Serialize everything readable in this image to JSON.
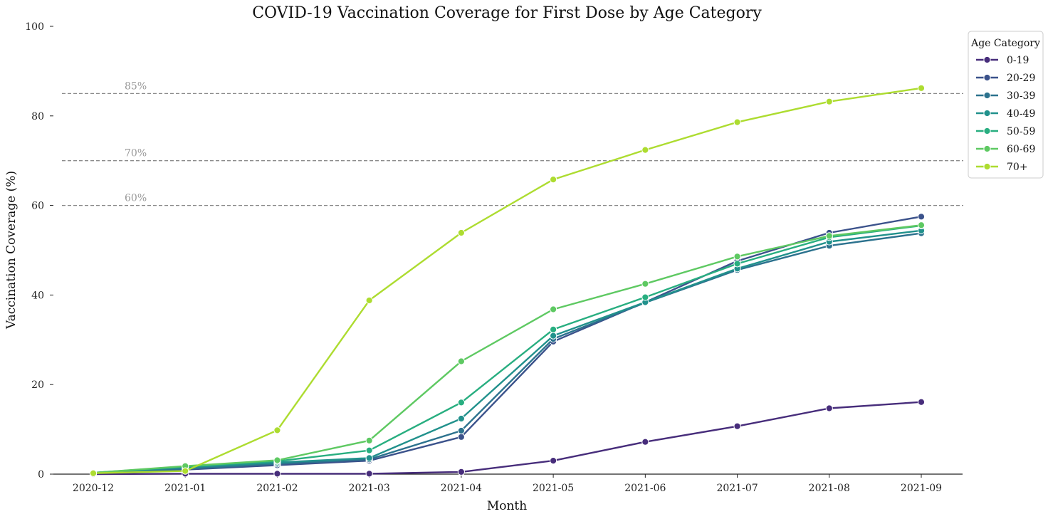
{
  "chart_data": {
    "type": "line",
    "title": "COVID-19 Vaccination Coverage for First Dose by Age Category",
    "xlabel": "Month",
    "ylabel": "Vaccination Coverage (%)",
    "ylim": [
      0,
      100
    ],
    "yticks": [
      0,
      20,
      40,
      60,
      80,
      100
    ],
    "categories": [
      "2020-12",
      "2021-01",
      "2021-02",
      "2021-03",
      "2021-04",
      "2021-05",
      "2021-06",
      "2021-07",
      "2021-08",
      "2021-09"
    ],
    "grid": false,
    "legend": {
      "title": "Age Category",
      "placement": "top-right"
    },
    "reference_lines": [
      {
        "value": 85,
        "label": "85%"
      },
      {
        "value": 70,
        "label": "70%"
      },
      {
        "value": 60,
        "label": "60%"
      }
    ],
    "series": [
      {
        "name": "0-19",
        "color": "#472d7b",
        "values": [
          0.0,
          0.1,
          0.1,
          0.1,
          0.5,
          3.0,
          7.2,
          10.7,
          14.7,
          16.1
        ]
      },
      {
        "name": "20-29",
        "color": "#3b528b",
        "values": [
          0.2,
          1.0,
          2.0,
          3.0,
          8.3,
          29.6,
          38.4,
          47.6,
          53.9,
          57.5
        ]
      },
      {
        "name": "30-39",
        "color": "#2c728e",
        "values": [
          0.2,
          1.2,
          2.3,
          3.3,
          9.7,
          30.2,
          38.3,
          45.6,
          51.0,
          53.8
        ]
      },
      {
        "name": "40-49",
        "color": "#21918c",
        "values": [
          0.3,
          1.5,
          2.6,
          3.6,
          12.4,
          30.9,
          38.4,
          45.9,
          51.9,
          54.4
        ]
      },
      {
        "name": "50-59",
        "color": "#28ae80",
        "values": [
          0.3,
          1.7,
          2.9,
          5.3,
          16.0,
          32.3,
          39.5,
          47.0,
          52.9,
          55.5
        ]
      },
      {
        "name": "60-69",
        "color": "#5ec962",
        "values": [
          0.3,
          1.8,
          3.1,
          7.5,
          25.2,
          36.8,
          42.5,
          48.6,
          53.2,
          55.6
        ]
      },
      {
        "name": "70+",
        "color": "#addc30",
        "values": [
          0.2,
          0.7,
          9.8,
          38.8,
          53.9,
          65.8,
          72.4,
          78.6,
          83.2,
          86.2
        ]
      }
    ]
  }
}
